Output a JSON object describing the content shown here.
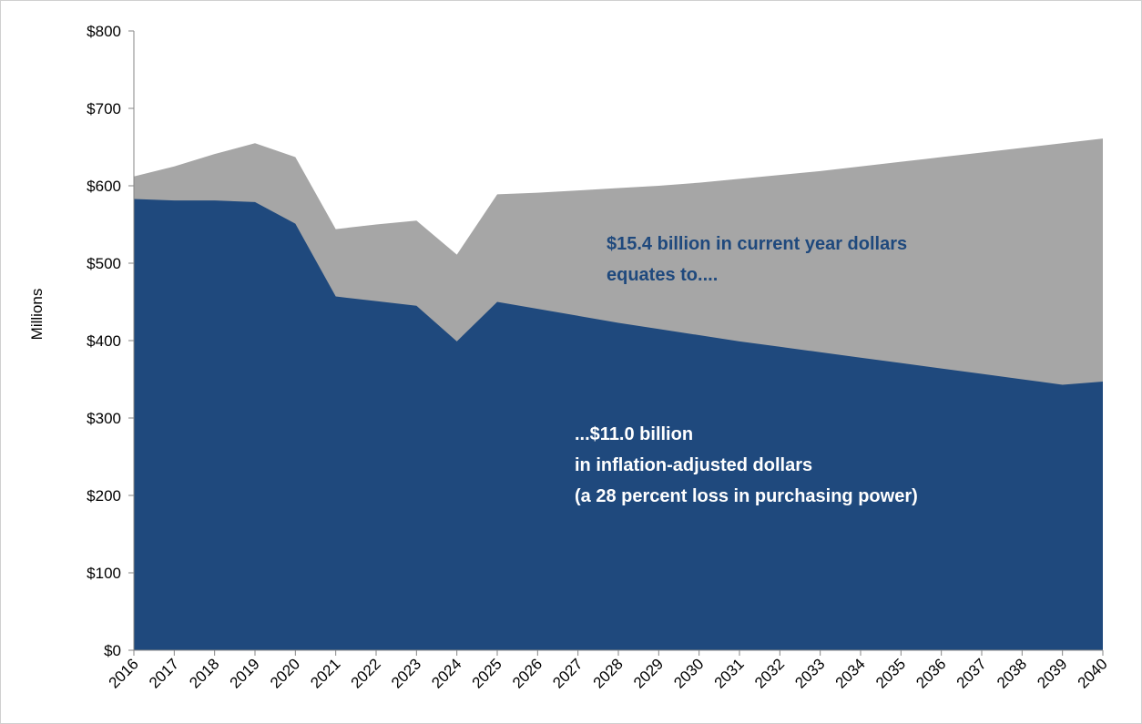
{
  "chart_data": {
    "type": "area",
    "title": "",
    "xlabel": "",
    "ylabel": "Millions",
    "x": [
      "2016",
      "2017",
      "2018",
      "2019",
      "2020",
      "2021",
      "2022",
      "2023",
      "2024",
      "2025",
      "2026",
      "2027",
      "2028",
      "2029",
      "2030",
      "2031",
      "2032",
      "2033",
      "2034",
      "2035",
      "2036",
      "2037",
      "2038",
      "2039",
      "2040"
    ],
    "ylim": [
      0,
      800
    ],
    "yticks": [
      "$0",
      "$100",
      "$200",
      "$300",
      "$400",
      "$500",
      "$600",
      "$700",
      "$800"
    ],
    "yticks_values": [
      0,
      100,
      200,
      300,
      400,
      500,
      600,
      700,
      800
    ],
    "grid": false,
    "legend": "none",
    "series": [
      {
        "color": "#a6a6a6",
        "values": [
          612,
          625,
          641,
          655,
          637,
          544,
          550,
          555,
          511,
          589,
          591,
          594,
          597,
          600,
          604,
          609,
          614,
          619,
          625,
          631,
          637,
          643,
          649,
          655,
          661
        ]
      },
      {
        "color": "#1f497d",
        "values": [
          583,
          581,
          581,
          579,
          551,
          457,
          451,
          445,
          399,
          450,
          441,
          432,
          423,
          415,
          407,
          399,
          392,
          385,
          378,
          371,
          364,
          357,
          350,
          343,
          347
        ]
      }
    ],
    "annotations": [
      {
        "lines": [
          "$15.4 billion in current year dollars",
          "equates to...."
        ],
        "color": "#1f497d"
      },
      {
        "lines": [
          "...$11.0 billion",
          "in inflation-adjusted   dollars",
          "(a 28 percent loss in purchasing power)"
        ],
        "color": "#ffffff"
      }
    ]
  }
}
